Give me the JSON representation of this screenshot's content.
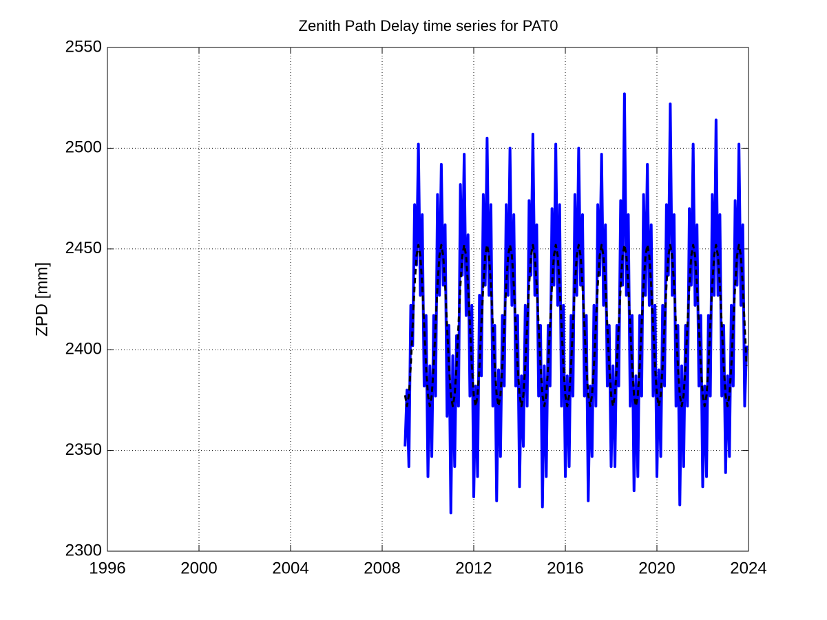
{
  "chart_data": {
    "type": "line",
    "title": "Zenith Path Delay time series for PAT0",
    "y_label": "ZPD [mm]",
    "xlim": [
      1996,
      2024
    ],
    "xticks": [
      1996,
      2000,
      2004,
      2008,
      2012,
      2016,
      2020,
      2024
    ],
    "ylim": [
      2300,
      2550
    ],
    "yticks": [
      2300,
      2350,
      2400,
      2450,
      2500,
      2550
    ],
    "grid": true,
    "x": [
      2009.0,
      2009.083,
      2009.167,
      2009.25,
      2009.333,
      2009.417,
      2009.5,
      2009.583,
      2009.667,
      2009.75,
      2009.833,
      2009.917,
      2010.0,
      2010.083,
      2010.167,
      2010.25,
      2010.333,
      2010.417,
      2010.5,
      2010.583,
      2010.667,
      2010.75,
      2010.833,
      2010.917,
      2011.0,
      2011.083,
      2011.167,
      2011.25,
      2011.333,
      2011.417,
      2011.5,
      2011.583,
      2011.667,
      2011.75,
      2011.833,
      2011.917,
      2012.0,
      2012.083,
      2012.167,
      2012.25,
      2012.333,
      2012.417,
      2012.5,
      2012.583,
      2012.667,
      2012.75,
      2012.833,
      2012.917,
      2013.0,
      2013.083,
      2013.167,
      2013.25,
      2013.333,
      2013.417,
      2013.5,
      2013.583,
      2013.667,
      2013.75,
      2013.833,
      2013.917,
      2014.0,
      2014.083,
      2014.167,
      2014.25,
      2014.333,
      2014.417,
      2014.5,
      2014.583,
      2014.667,
      2014.75,
      2014.833,
      2014.917,
      2015.0,
      2015.083,
      2015.167,
      2015.25,
      2015.333,
      2015.417,
      2015.5,
      2015.583,
      2015.667,
      2015.75,
      2015.833,
      2015.917,
      2016.0,
      2016.083,
      2016.167,
      2016.25,
      2016.333,
      2016.417,
      2016.5,
      2016.583,
      2016.667,
      2016.75,
      2016.833,
      2016.917,
      2017.0,
      2017.083,
      2017.167,
      2017.25,
      2017.333,
      2017.417,
      2017.5,
      2017.583,
      2017.667,
      2017.75,
      2017.833,
      2017.917,
      2018.0,
      2018.083,
      2018.167,
      2018.25,
      2018.333,
      2018.417,
      2018.5,
      2018.583,
      2018.667,
      2018.75,
      2018.833,
      2018.917,
      2019.0,
      2019.083,
      2019.167,
      2019.25,
      2019.333,
      2019.417,
      2019.5,
      2019.583,
      2019.667,
      2019.75,
      2019.833,
      2019.917,
      2020.0,
      2020.083,
      2020.167,
      2020.25,
      2020.333,
      2020.417,
      2020.5,
      2020.583,
      2020.667,
      2020.75,
      2020.833,
      2020.917,
      2021.0,
      2021.083,
      2021.167,
      2021.25,
      2021.333,
      2021.417,
      2021.5,
      2021.583,
      2021.667,
      2021.75,
      2021.833,
      2021.917,
      2022.0,
      2022.083,
      2022.167,
      2022.25,
      2022.333,
      2022.417,
      2022.5,
      2022.583,
      2022.667,
      2022.75,
      2022.833,
      2022.917,
      2023.0,
      2023.083,
      2023.167,
      2023.25,
      2023.333,
      2023.417,
      2023.5,
      2023.583,
      2023.667,
      2023.75,
      2023.833,
      2023.917
    ],
    "series": [
      {
        "color": "#0000ff",
        "line_style": "solid",
        "line_width": 4,
        "values": [
          2352,
          2380,
          2342,
          2422,
          2402,
          2472,
          2442,
          2502,
          2427,
          2467,
          2382,
          2417,
          2337,
          2392,
          2347,
          2417,
          2377,
          2477,
          2427,
          2492,
          2432,
          2462,
          2367,
          2412,
          2319,
          2397,
          2342,
          2407,
          2372,
          2482,
          2437,
          2497,
          2417,
          2457,
          2377,
          2422,
          2327,
          2382,
          2337,
          2427,
          2387,
          2477,
          2432,
          2505,
          2427,
          2472,
          2372,
          2412,
          2325,
          2390,
          2347,
          2417,
          2382,
          2472,
          2427,
          2500,
          2422,
          2467,
          2382,
          2417,
          2332,
          2387,
          2352,
          2422,
          2372,
          2474,
          2437,
          2507,
          2427,
          2462,
          2377,
          2412,
          2322,
          2392,
          2337,
          2412,
          2382,
          2470,
          2432,
          2502,
          2422,
          2472,
          2372,
          2422,
          2337,
          2387,
          2342,
          2417,
          2377,
          2477,
          2427,
          2500,
          2432,
          2467,
          2377,
          2417,
          2325,
          2382,
          2347,
          2422,
          2372,
          2472,
          2437,
          2497,
          2422,
          2462,
          2382,
          2412,
          2342,
          2392,
          2342,
          2412,
          2382,
          2474,
          2432,
          2527,
          2427,
          2467,
          2372,
          2417,
          2330,
          2387,
          2337,
          2417,
          2377,
          2477,
          2427,
          2492,
          2422,
          2462,
          2377,
          2422,
          2337,
          2390,
          2347,
          2422,
          2382,
          2472,
          2437,
          2522,
          2427,
          2467,
          2372,
          2412,
          2323,
          2392,
          2342,
          2412,
          2372,
          2470,
          2432,
          2502,
          2422,
          2462,
          2382,
          2417,
          2332,
          2382,
          2337,
          2417,
          2377,
          2477,
          2427,
          2514,
          2427,
          2467,
          2377,
          2412,
          2339,
          2387,
          2347,
          2422,
          2382,
          2474,
          2432,
          2502,
          2422,
          2462,
          2372,
          2402
        ]
      },
      {
        "color": "#000000",
        "line_style": "dashed",
        "line_width": 3,
        "values": [
          2377.4,
          2372,
          2377.4,
          2392,
          2412,
          2432,
          2446.6,
          2452,
          2446.6,
          2432,
          2412,
          2392,
          2377.4,
          2372,
          2377.4,
          2392,
          2412,
          2432,
          2446.6,
          2452,
          2446.6,
          2432,
          2412,
          2392,
          2377.4,
          2372,
          2377.4,
          2392,
          2412,
          2432,
          2446.6,
          2452,
          2446.6,
          2432,
          2412,
          2392,
          2377.4,
          2372,
          2377.4,
          2392,
          2412,
          2432,
          2446.6,
          2452,
          2446.6,
          2432,
          2412,
          2392,
          2377.4,
          2372,
          2377.4,
          2392,
          2412,
          2432,
          2446.6,
          2452,
          2446.6,
          2432,
          2412,
          2392,
          2377.4,
          2372,
          2377.4,
          2392,
          2412,
          2432,
          2446.6,
          2452,
          2446.6,
          2432,
          2412,
          2392,
          2377.4,
          2372,
          2377.4,
          2392,
          2412,
          2432,
          2446.6,
          2452,
          2446.6,
          2432,
          2412,
          2392,
          2377.4,
          2372,
          2377.4,
          2392,
          2412,
          2432,
          2446.6,
          2452,
          2446.6,
          2432,
          2412,
          2392,
          2377.4,
          2372,
          2377.4,
          2392,
          2412,
          2432,
          2446.6,
          2452,
          2446.6,
          2432,
          2412,
          2392,
          2377.4,
          2372,
          2377.4,
          2392,
          2412,
          2432,
          2446.6,
          2452,
          2446.6,
          2432,
          2412,
          2392,
          2377.4,
          2372,
          2377.4,
          2392,
          2412,
          2432,
          2446.6,
          2452,
          2446.6,
          2432,
          2412,
          2392,
          2377.4,
          2372,
          2377.4,
          2392,
          2412,
          2432,
          2446.6,
          2452,
          2446.6,
          2432,
          2412,
          2392,
          2377.4,
          2372,
          2377.4,
          2392,
          2412,
          2432,
          2446.6,
          2452,
          2446.6,
          2432,
          2412,
          2392,
          2377.4,
          2372,
          2377.4,
          2392,
          2412,
          2432,
          2446.6,
          2452,
          2446.6,
          2432,
          2412,
          2392,
          2377.4,
          2372,
          2377.4,
          2392,
          2412,
          2432,
          2446.6,
          2452,
          2446.6,
          2432,
          2412,
          2392
        ]
      }
    ]
  }
}
